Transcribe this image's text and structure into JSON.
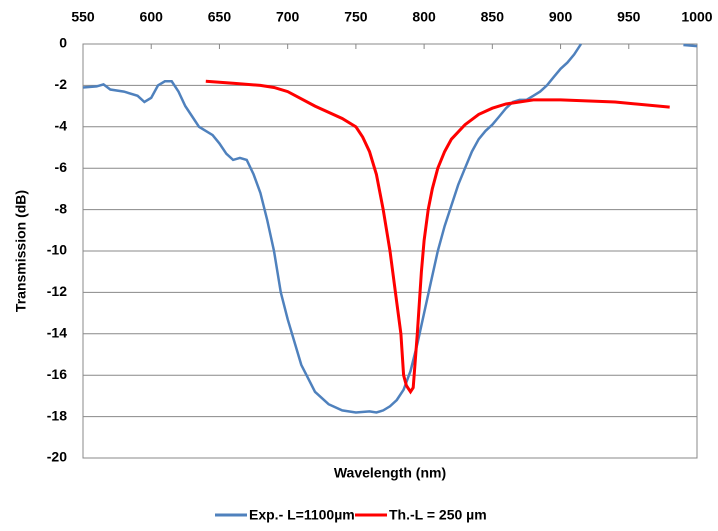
{
  "chart_data": {
    "type": "line",
    "xlabel": "Wavelength (nm)",
    "ylabel": "Transmission (dB)",
    "xlim": [
      550,
      1000
    ],
    "xticks": [
      550,
      600,
      650,
      700,
      750,
      800,
      850,
      900,
      950,
      1000
    ],
    "ylim": [
      -20,
      0
    ],
    "yticks": [
      0,
      -2,
      -4,
      -6,
      -8,
      -10,
      -12,
      -14,
      -16,
      -18,
      -20
    ],
    "grid": true,
    "x_axis_position": "top",
    "legend": "bottom",
    "series": [
      {
        "name": "Exp.- L=1100µm",
        "color": "#4f81bd",
        "x": [
          550,
          560,
          565,
          570,
          580,
          590,
          595,
          600,
          605,
          610,
          615,
          620,
          625,
          630,
          635,
          640,
          645,
          650,
          655,
          660,
          665,
          670,
          675,
          680,
          685,
          690,
          695,
          700,
          710,
          720,
          730,
          740,
          750,
          760,
          765,
          770,
          775,
          780,
          785,
          790,
          795,
          800,
          805,
          810,
          815,
          820,
          825,
          830,
          835,
          840,
          845,
          850,
          855,
          860,
          865,
          870,
          875,
          880,
          885,
          890,
          895,
          900,
          905,
          910,
          915,
          950,
          990,
          1000
        ],
        "values": [
          -2.1,
          -2.05,
          -1.95,
          -2.2,
          -2.3,
          -2.5,
          -2.8,
          -2.6,
          -2.0,
          -1.8,
          -1.8,
          -2.3,
          -3.0,
          -3.5,
          -4.0,
          -4.2,
          -4.4,
          -4.8,
          -5.3,
          -5.6,
          -5.5,
          -5.6,
          -6.3,
          -7.2,
          -8.5,
          -10.0,
          -12.0,
          -13.3,
          -15.5,
          -16.8,
          -17.4,
          -17.7,
          -17.8,
          -17.75,
          -17.8,
          -17.7,
          -17.5,
          -17.2,
          -16.7,
          -15.8,
          -14.5,
          -13.0,
          -11.5,
          -10.0,
          -8.8,
          -7.8,
          -6.8,
          -6.0,
          -5.2,
          -4.6,
          -4.2,
          -3.9,
          -3.5,
          -3.1,
          -2.8,
          -2.7,
          -2.7,
          -2.5,
          -2.3,
          -2.0,
          -1.6,
          -1.2,
          -0.9,
          -0.5,
          0,
          null,
          -0.05,
          -0.1
        ]
      },
      {
        "name": "Th.-L = 250 µm",
        "color": "#ff0000",
        "x": [
          640,
          660,
          680,
          690,
          700,
          720,
          740,
          750,
          755,
          760,
          765,
          770,
          775,
          780,
          783,
          785,
          787,
          790,
          792,
          795,
          798,
          800,
          803,
          806,
          810,
          815,
          820,
          830,
          840,
          850,
          860,
          880,
          900,
          940,
          980
        ],
        "values": [
          -1.8,
          -1.9,
          -2.0,
          -2.1,
          -2.3,
          -3.0,
          -3.6,
          -4.0,
          -4.5,
          -5.2,
          -6.3,
          -8.0,
          -10.0,
          -12.5,
          -14.0,
          -16.0,
          -16.5,
          -16.8,
          -16.6,
          -14.0,
          -11.0,
          -9.5,
          -8.0,
          -7.0,
          -6.0,
          -5.2,
          -4.6,
          -3.9,
          -3.4,
          -3.1,
          -2.9,
          -2.7,
          -2.7,
          -2.8,
          -3.05
        ]
      }
    ]
  }
}
